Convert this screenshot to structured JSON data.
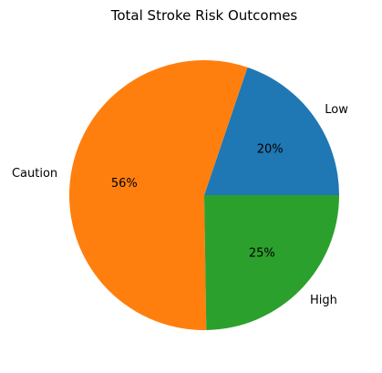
{
  "chart_data": {
    "type": "pie",
    "title": "Total Stroke Risk Outcomes",
    "slices": [
      {
        "label": "Low",
        "value": 20,
        "pct_label": "20%",
        "color": "#1f77b4"
      },
      {
        "label": "Caution",
        "value": 56,
        "pct_label": "56%",
        "color": "#ff7f0e"
      },
      {
        "label": "High",
        "value": 25,
        "pct_label": "25%",
        "color": "#2ca02c"
      }
    ],
    "start_angle_deg": 0,
    "direction": "counterclockwise",
    "legend": "none"
  }
}
